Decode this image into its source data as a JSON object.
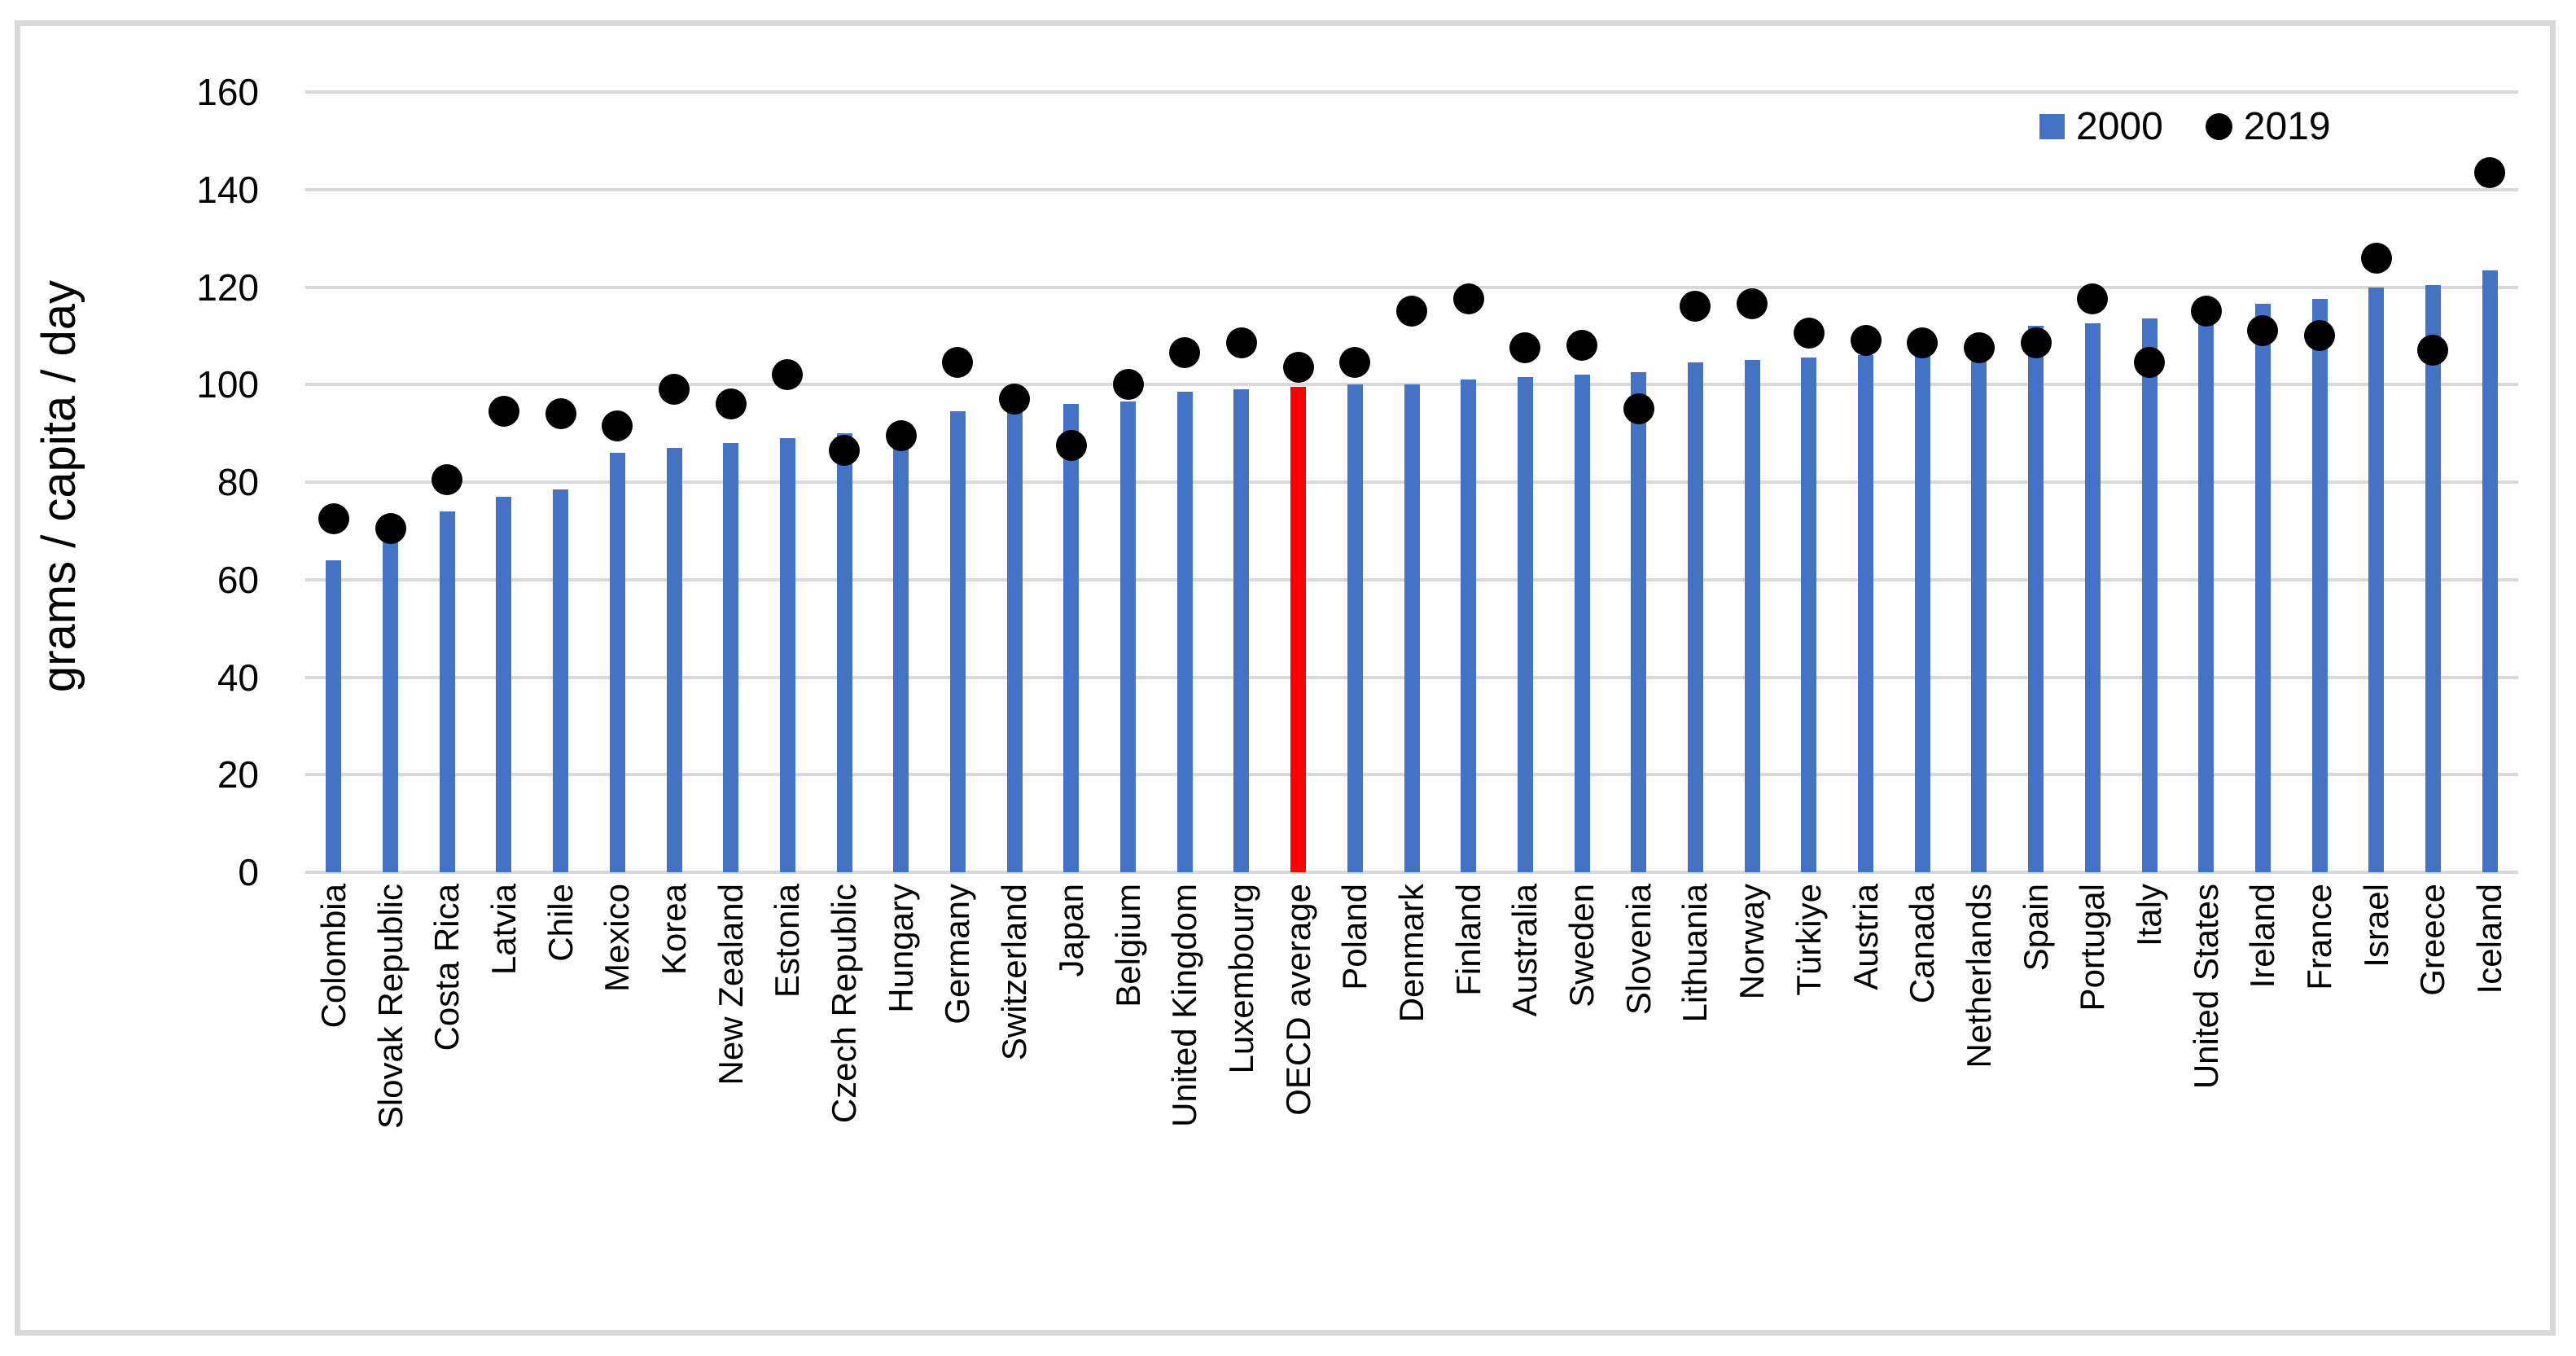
{
  "chart_data": {
    "type": "bar",
    "overlay": "scatter",
    "title": "",
    "ylabel": "grams / capita / day",
    "xlabel": "",
    "ylim": [
      0,
      160
    ],
    "yticks": [
      0,
      20,
      40,
      60,
      80,
      100,
      120,
      140,
      160
    ],
    "grid": true,
    "legend_position": "top-right",
    "categories": [
      "Colombia",
      "Slovak Republic",
      "Costa Rica",
      "Latvia",
      "Chile",
      "Mexico",
      "Korea",
      "New Zealand",
      "Estonia",
      "Czech Republic",
      "Hungary",
      "Germany",
      "Switzerland",
      "Japan",
      "Belgium",
      "United Kingdom",
      "Luxembourg",
      "OECD average",
      "Poland",
      "Denmark",
      "Finland",
      "Australia",
      "Sweden",
      "Slovenia",
      "Lithuania",
      "Norway",
      "Türkiye",
      "Austria",
      "Canada",
      "Netherlands",
      "Spain",
      "Portugal",
      "Italy",
      "United States",
      "Ireland",
      "France",
      "Israel",
      "Greece",
      "Iceland"
    ],
    "series": [
      {
        "name": "2000",
        "type": "bar",
        "color": "#4472C4",
        "values": [
          64,
          70,
          74,
          77,
          78.5,
          86,
          87,
          88,
          89,
          90,
          91.5,
          94.5,
          95,
          96,
          96.5,
          98.5,
          99,
          99.5,
          100,
          100,
          101,
          101.5,
          102,
          102.5,
          104.5,
          105,
          105.5,
          106,
          106.5,
          107,
          112,
          112.5,
          113.5,
          115,
          116.5,
          117.5,
          120,
          120.5,
          123.5
        ]
      },
      {
        "name": "2019",
        "type": "scatter",
        "color": "#000000",
        "values": [
          72.5,
          70.5,
          80.5,
          94.5,
          94,
          91.5,
          99,
          96,
          102,
          86.5,
          89.5,
          104.5,
          97,
          87.5,
          100,
          106.5,
          108.5,
          103.5,
          104.5,
          115,
          117.5,
          107.5,
          108,
          95,
          116,
          116.5,
          110.5,
          109,
          108.5,
          107.5,
          108.5,
          117.5,
          104.5,
          115,
          111,
          110,
          126,
          107,
          143.5
        ]
      }
    ],
    "highlight": {
      "category": "OECD average",
      "bar_color": "#FF0000"
    }
  },
  "legend": {
    "items": [
      {
        "label": "2000",
        "marker": "square",
        "color": "#4472C4"
      },
      {
        "label": "2019",
        "marker": "circle",
        "color": "#000000"
      }
    ]
  },
  "colors": {
    "bar": "#4472C4",
    "bar_highlight": "#FF0000",
    "dot": "#000000",
    "gridline": "#D9D9D9",
    "frame_border": "#D9D9D9",
    "background": "#FFFFFF"
  }
}
